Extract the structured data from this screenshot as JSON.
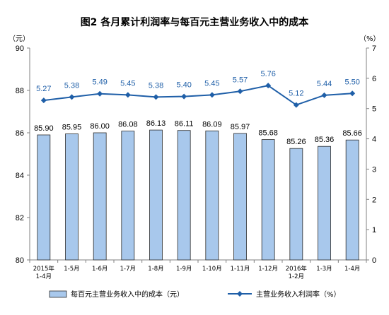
{
  "chart_data": {
    "type": "bar+line",
    "title": "图2  各月累计利润率与每百元主营业务收入中的成本",
    "left_unit": "（元）",
    "right_unit": "（%）",
    "left_axis": {
      "min": 80,
      "max": 90,
      "step": 2,
      "ticks": [
        "80",
        "82",
        "84",
        "86",
        "88",
        "90"
      ]
    },
    "right_axis": {
      "min": 0,
      "max": 7,
      "step": 1,
      "ticks": [
        "0",
        "1",
        "2",
        "3",
        "4",
        "5",
        "6",
        "7"
      ]
    },
    "categories": [
      [
        "2015年",
        "1-4月"
      ],
      [
        "1-5月"
      ],
      [
        "1-6月"
      ],
      [
        "1-7月"
      ],
      [
        "1-8月"
      ],
      [
        "1-9月"
      ],
      [
        "1-10月"
      ],
      [
        "1-11月"
      ],
      [
        "1-12月"
      ],
      [
        "2016年",
        "1-2月"
      ],
      [
        "1-3月"
      ],
      [
        "1-4月"
      ]
    ],
    "series": [
      {
        "name": "每百元主营业务收入中的成本（元）",
        "type": "bar",
        "axis": "left",
        "color": "#a8c8ec",
        "values": [
          85.9,
          85.95,
          86.0,
          86.08,
          86.13,
          86.11,
          86.09,
          85.97,
          85.68,
          85.26,
          85.36,
          85.66
        ],
        "labels": [
          "85.90",
          "85.95",
          "86.00",
          "86.08",
          "86.13",
          "86.11",
          "86.09",
          "85.97",
          "85.68",
          "85.26",
          "85.36",
          "85.66"
        ]
      },
      {
        "name": "主营业务收入利润率（%）",
        "type": "line",
        "axis": "right",
        "color": "#1f5fa8",
        "values": [
          5.27,
          5.38,
          5.49,
          5.45,
          5.38,
          5.4,
          5.45,
          5.57,
          5.76,
          5.12,
          5.44,
          5.5
        ],
        "labels": [
          "5.27",
          "5.38",
          "5.49",
          "5.45",
          "5.38",
          "5.40",
          "5.45",
          "5.57",
          "5.76",
          "5.12",
          "5.44",
          "5.50"
        ]
      }
    ],
    "legend_position": "bottom",
    "grid": false
  }
}
